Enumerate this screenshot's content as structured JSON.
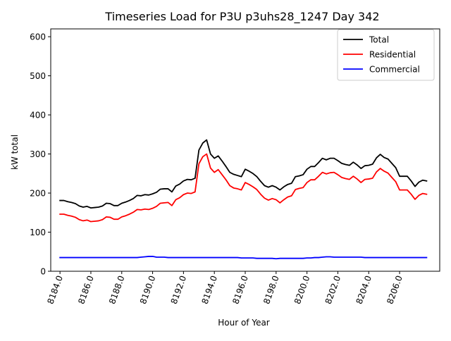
{
  "chart_data": {
    "type": "line",
    "title": "Timeseries Load for P3U p3uhs28_1247  Day 342",
    "xlabel": "Hour of Year",
    "ylabel": "kW total",
    "xlim": [
      8183.4,
      8208.6
    ],
    "ylim": [
      0,
      620
    ],
    "xticks": [
      8184,
      8186,
      8188,
      8190,
      8192,
      8194,
      8196,
      8198,
      8200,
      8202,
      8204,
      8206
    ],
    "xtick_labels": [
      "8184.0",
      "8186.0",
      "8188.0",
      "8190.0",
      "8192.0",
      "8194.0",
      "8196.0",
      "8198.0",
      "8200.0",
      "8202.0",
      "8204.0",
      "8206.0"
    ],
    "yticks": [
      0,
      100,
      200,
      300,
      400,
      500,
      600
    ],
    "ytick_labels": [
      "0",
      "100",
      "200",
      "300",
      "400",
      "500",
      "600"
    ],
    "grid": false,
    "legend_position": "top-right",
    "x_start": 8184.0,
    "x_step": 0.25,
    "series": [
      {
        "name": "Total",
        "color": "#000000",
        "values": [
          181,
          181,
          178,
          176,
          173,
          167,
          164,
          166,
          162,
          163,
          164,
          167,
          174,
          173,
          168,
          168,
          174,
          177,
          181,
          186,
          194,
          193,
          196,
          195,
          198,
          202,
          210,
          211,
          211,
          203,
          218,
          223,
          231,
          235,
          234,
          238,
          310,
          328,
          336,
          300,
          289,
          295,
          282,
          268,
          253,
          248,
          245,
          242,
          261,
          256,
          250,
          242,
          230,
          219,
          215,
          219,
          215,
          208,
          216,
          222,
          225,
          242,
          244,
          247,
          261,
          268,
          268,
          278,
          289,
          285,
          289,
          289,
          283,
          276,
          273,
          271,
          279,
          272,
          263,
          270,
          271,
          274,
          290,
          299,
          291,
          287,
          276,
          265,
          243,
          243,
          243,
          231,
          217,
          228,
          233,
          231
        ]
      },
      {
        "name": "Residential",
        "color": "#ff0000",
        "values": [
          146,
          146,
          143,
          141,
          138,
          132,
          129,
          131,
          127,
          128,
          129,
          132,
          139,
          138,
          133,
          133,
          139,
          142,
          146,
          151,
          158,
          157,
          159,
          158,
          161,
          166,
          174,
          175,
          176,
          168,
          183,
          188,
          196,
          200,
          199,
          203,
          275,
          293,
          300,
          264,
          253,
          260,
          247,
          234,
          219,
          213,
          211,
          208,
          227,
          222,
          216,
          209,
          197,
          187,
          182,
          186,
          183,
          175,
          183,
          190,
          193,
          209,
          212,
          214,
          227,
          234,
          234,
          243,
          253,
          249,
          252,
          253,
          247,
          240,
          237,
          235,
          243,
          236,
          227,
          235,
          236,
          238,
          254,
          263,
          256,
          251,
          240,
          229,
          208,
          208,
          208,
          197,
          184,
          194,
          199,
          197
        ]
      },
      {
        "name": "Commercial",
        "color": "#0000ff",
        "values": [
          35,
          35,
          35,
          35,
          35,
          35,
          35,
          35,
          35,
          35,
          35,
          35,
          35,
          35,
          35,
          35,
          35,
          35,
          35,
          35,
          35,
          36,
          37,
          38,
          38,
          36,
          36,
          36,
          35,
          35,
          35,
          35,
          35,
          35,
          35,
          35,
          35,
          35,
          35,
          35,
          35,
          35,
          35,
          35,
          35,
          35,
          35,
          34,
          34,
          34,
          34,
          33,
          33,
          33,
          33,
          33,
          32,
          33,
          33,
          33,
          33,
          33,
          33,
          33,
          34,
          34,
          35,
          35,
          36,
          37,
          37,
          36,
          36,
          36,
          36,
          36,
          36,
          36,
          36,
          35,
          35,
          35,
          35,
          35,
          35,
          35,
          35,
          35,
          35,
          35,
          35,
          35,
          35,
          35,
          35,
          35
        ]
      }
    ]
  }
}
